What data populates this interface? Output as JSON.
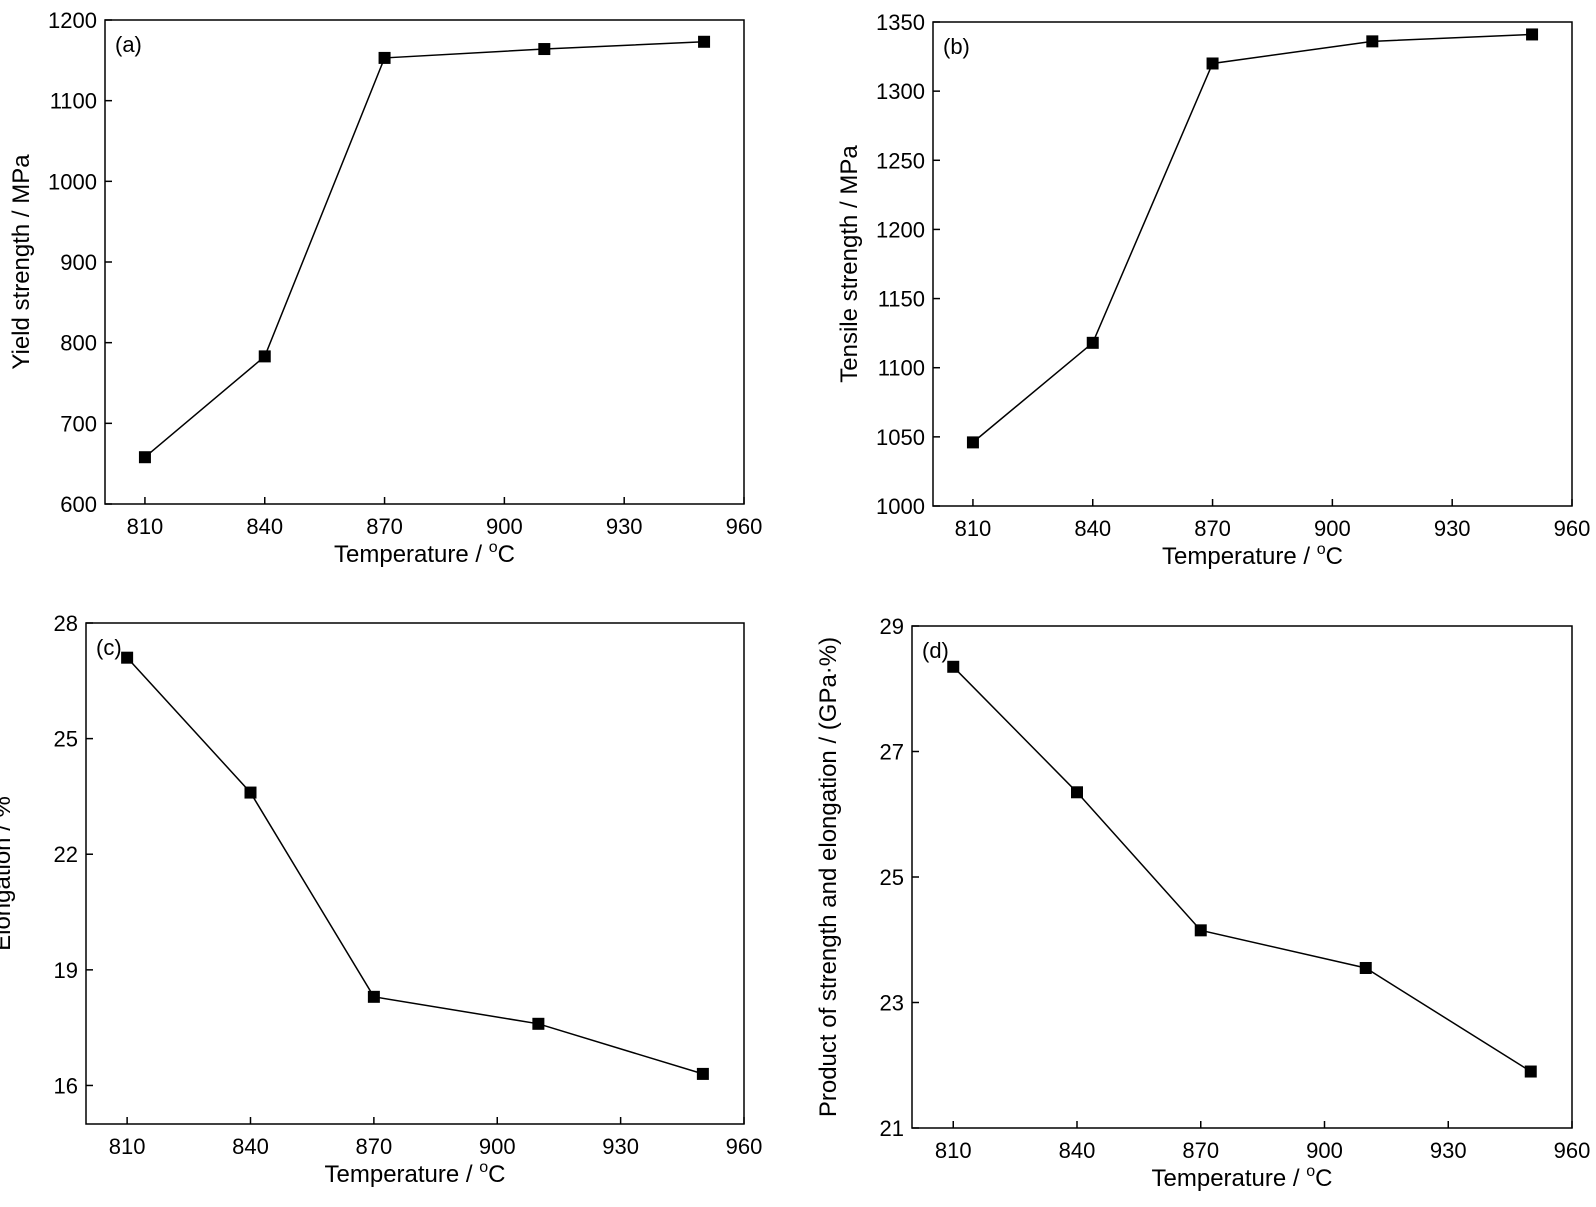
{
  "colors": {
    "line": "#000000",
    "marker": "#000000",
    "background": "#ffffff"
  },
  "chart_data": [
    {
      "type": "line",
      "panel_label": "(a)",
      "xlabel": "Temperature / ",
      "xlabel_sup": "o",
      "xlabel_tail": "C",
      "ylabel": "Yield strength / MPa",
      "xlim": [
        800,
        960
      ],
      "ylim": [
        600,
        1200
      ],
      "xticks": [
        810,
        840,
        870,
        900,
        930,
        960
      ],
      "yticks": [
        600,
        700,
        800,
        900,
        1000,
        1100,
        1200
      ],
      "marker": "square",
      "series": [
        {
          "x": [
            810,
            840,
            870,
            910,
            950
          ],
          "values": [
            658,
            783,
            1153,
            1164,
            1173
          ]
        }
      ]
    },
    {
      "type": "line",
      "panel_label": "(b)",
      "xlabel": "Temperature / ",
      "xlabel_sup": "o",
      "xlabel_tail": "C",
      "ylabel": "Tensile strength / MPa",
      "xlim": [
        800,
        960
      ],
      "ylim": [
        1000,
        1350
      ],
      "xticks": [
        810,
        840,
        870,
        900,
        930,
        960
      ],
      "yticks": [
        1000,
        1050,
        1100,
        1150,
        1200,
        1250,
        1300,
        1350
      ],
      "marker": "square",
      "series": [
        {
          "x": [
            810,
            840,
            870,
            910,
            950
          ],
          "values": [
            1046,
            1118,
            1320,
            1336,
            1341
          ]
        }
      ]
    },
    {
      "type": "line",
      "panel_label": "(c)",
      "xlabel": "Temperature / ",
      "xlabel_sup": "o",
      "xlabel_tail": "C",
      "ylabel": "Elongation / %",
      "xlim": [
        800,
        960
      ],
      "ylim": [
        15,
        28
      ],
      "xticks": [
        810,
        840,
        870,
        900,
        930,
        960
      ],
      "yticks": [
        16,
        19,
        22,
        25,
        28
      ],
      "marker": "square",
      "series": [
        {
          "x": [
            810,
            840,
            870,
            910,
            950
          ],
          "values": [
            27.1,
            23.6,
            18.3,
            17.6,
            16.3
          ]
        }
      ]
    },
    {
      "type": "line",
      "panel_label": "(d)",
      "xlabel": "Temperature / ",
      "xlabel_sup": "o",
      "xlabel_tail": "C",
      "ylabel": "Product of strength and elongation / (GPa·%)",
      "xlim": [
        800,
        960
      ],
      "ylim": [
        21,
        29
      ],
      "xticks": [
        810,
        840,
        870,
        900,
        930,
        960
      ],
      "yticks": [
        21,
        23,
        25,
        27,
        29
      ],
      "marker": "square",
      "series": [
        {
          "x": [
            810,
            840,
            870,
            910,
            950
          ],
          "values": [
            28.35,
            26.35,
            24.15,
            23.55,
            21.9
          ]
        }
      ]
    }
  ]
}
